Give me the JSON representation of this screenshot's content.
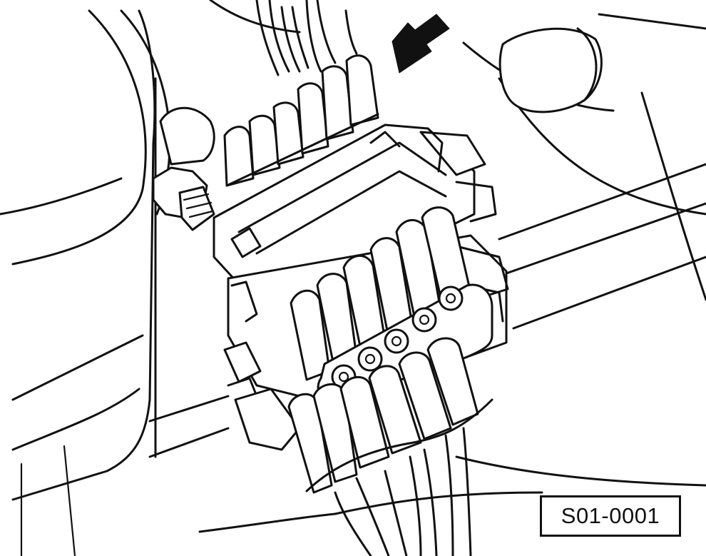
{
  "figure": {
    "label": "S01-0001",
    "line_color": "#111111",
    "background": "#ffffff",
    "icons": [
      "arrow-icon"
    ]
  }
}
